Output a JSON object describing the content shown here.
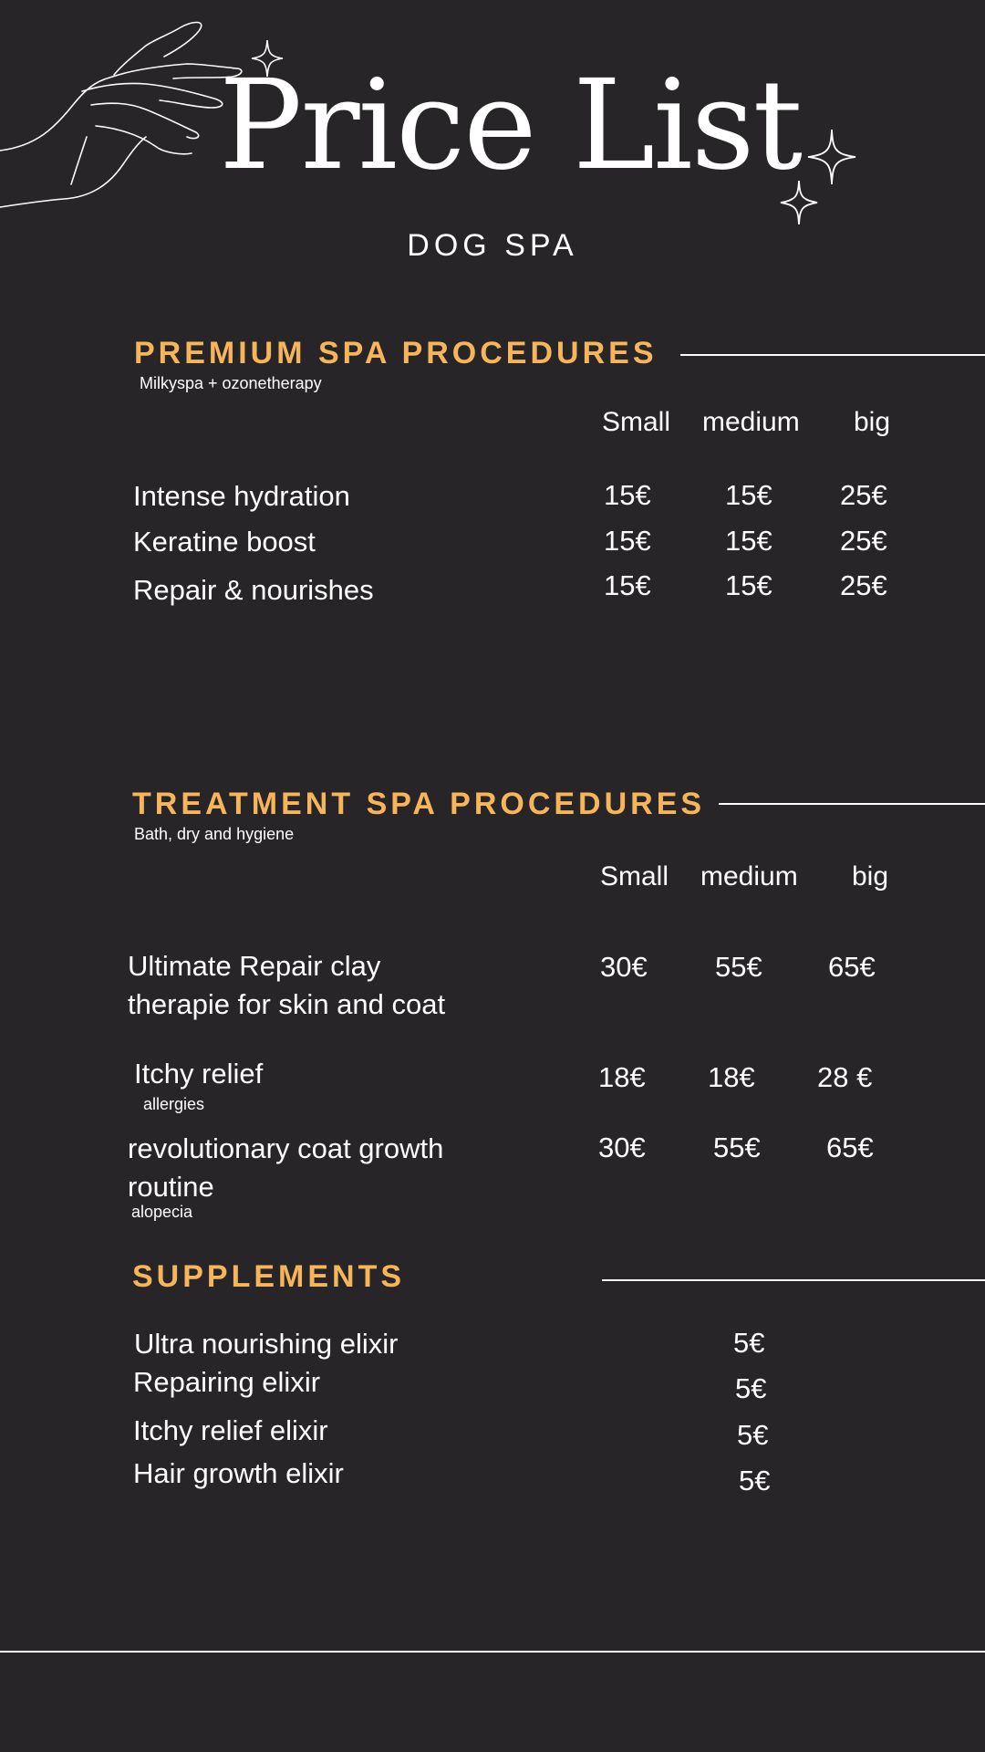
{
  "header": {
    "title": "Price List",
    "subtitle": "DOG SPA"
  },
  "icons": {
    "hand": "hand-line-art-icon",
    "sparkle": "sparkle-icon"
  },
  "colors": {
    "background": "#272527",
    "accent": "#f7b55a",
    "text": "#ffffff"
  },
  "premium": {
    "title": "PREMIUM SPA PROCEDURES",
    "note": "Milkyspa + ozonetherapy",
    "columns": [
      "Small",
      "medium",
      "big"
    ],
    "items": [
      {
        "name": "Intense hydration",
        "prices": [
          "15€",
          "15€",
          "25€"
        ]
      },
      {
        "name": "Keratine boost",
        "prices": [
          "15€",
          "15€",
          "25€"
        ]
      },
      {
        "name": "Repair & nourishes",
        "prices": [
          "15€",
          "15€",
          "25€"
        ]
      }
    ]
  },
  "treatment": {
    "title": "TREATMENT SPA PROCEDURES",
    "note": "Bath, dry and hygiene",
    "columns": [
      "Small",
      "medium",
      "big"
    ],
    "items": [
      {
        "name_line1": "Ultimate Repair clay",
        "name_line2": "therapie for skin and coat",
        "prices": [
          "30€",
          "55€",
          "65€"
        ]
      },
      {
        "name_line1": "Itchy relief",
        "note": "allergies",
        "prices": [
          "18€",
          "18€",
          "28 €"
        ]
      },
      {
        "name_line1": "revolutionary coat growth",
        "name_line2": "routine",
        "note": "alopecia",
        "prices": [
          "30€",
          "55€",
          "65€"
        ]
      }
    ]
  },
  "supplements": {
    "title": "SUPPLEMENTS",
    "items": [
      {
        "name": "Ultra nourishing elixir",
        "price": "5€"
      },
      {
        "name": "Repairing  elixir",
        "price": "5€"
      },
      {
        "name": "Itchy relief elixir",
        "price": "5€"
      },
      {
        "name": "Hair growth elixir",
        "price": "5€"
      }
    ]
  }
}
